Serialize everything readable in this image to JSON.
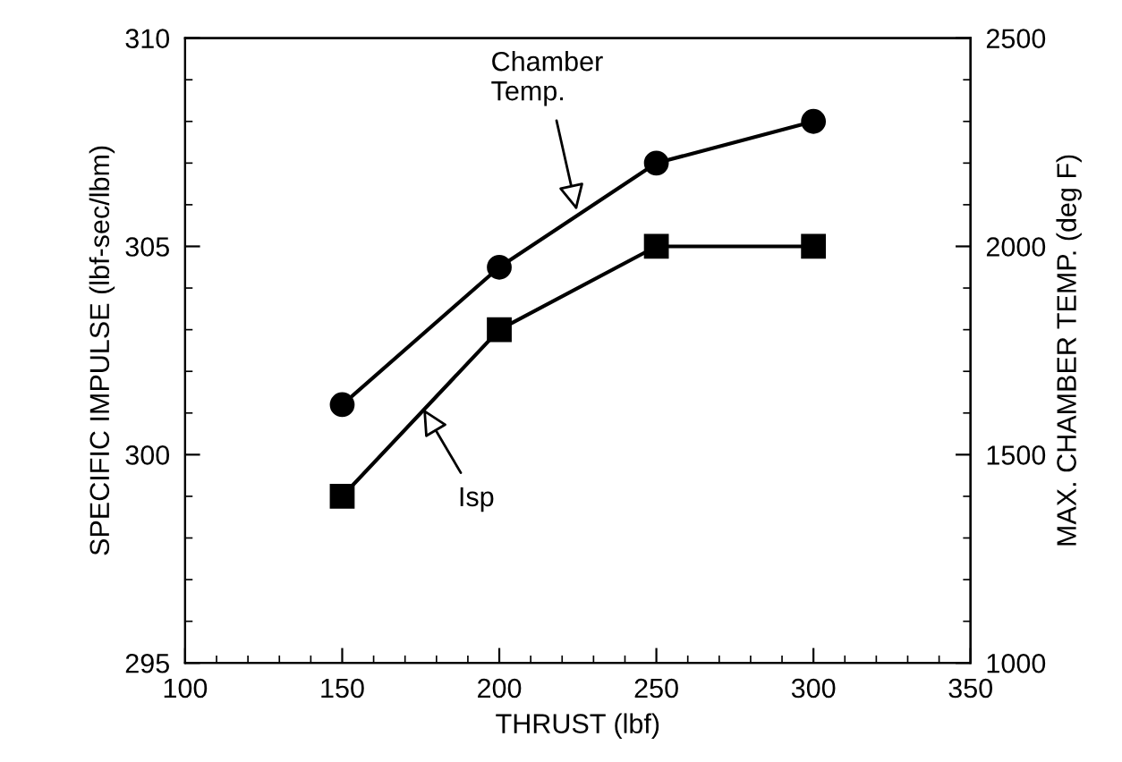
{
  "chart_data": {
    "type": "line",
    "xlabel": "THRUST (lbf)",
    "ylabel": "SPECIFIC IMPULSE (lbf-sec/lbm)",
    "y2label": "MAX. CHAMBER TEMP. (deg F)",
    "x": [
      150,
      200,
      250,
      300
    ],
    "series": [
      {
        "color": "#000000",
        "marker": "circle",
        "axis": "y2",
        "values": [
          1620,
          1950,
          2200,
          2300
        ]
      },
      {
        "color": "#000000",
        "marker": "square",
        "values": [
          299,
          303,
          305,
          305
        ]
      }
    ],
    "annotations": [
      {
        "text": "Chamber\nTemp.",
        "x": 225,
        "y": 305.75
      },
      {
        "text": "Isp",
        "x": 175,
        "y": 301.2
      }
    ],
    "xlim": [
      100,
      350
    ],
    "xticks": [
      100,
      150,
      200,
      250,
      300,
      350
    ],
    "ylim": [
      295,
      310
    ],
    "yticks": [
      295,
      300,
      305,
      310
    ],
    "y2lim": [
      1000,
      2500
    ],
    "y2ticks": [
      1000,
      1500,
      2000,
      2500
    ],
    "grid": false,
    "legend": false,
    "line_style": "solid"
  }
}
